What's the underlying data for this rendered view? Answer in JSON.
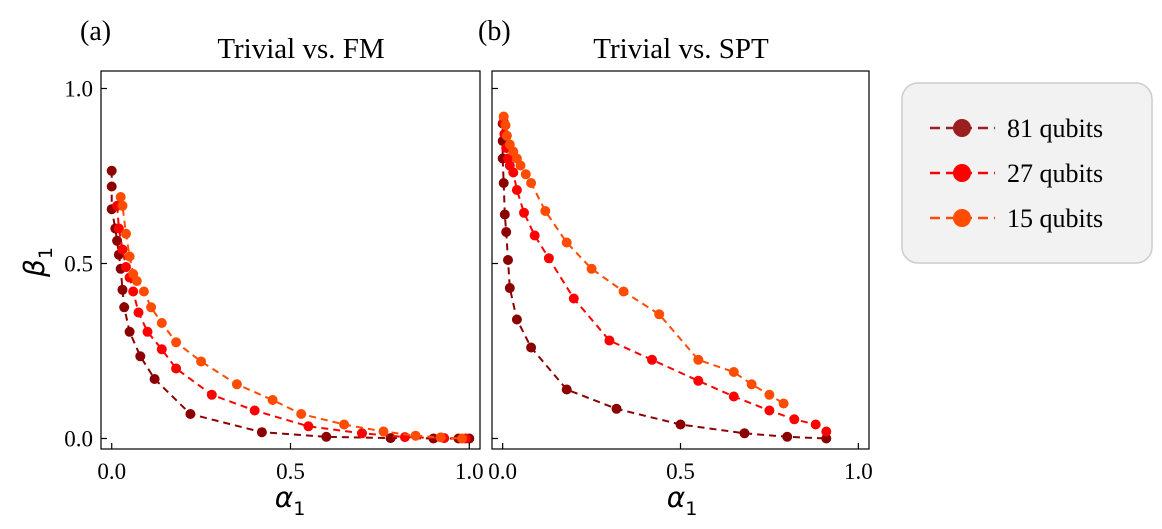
{
  "figure": {
    "y_axis_label": "β",
    "y_axis_label_sub": "1",
    "x_axis_label": "α",
    "x_axis_label_sub": "1"
  },
  "legend": [
    {
      "label": "81 qubits",
      "color": "#9a1f1f"
    },
    {
      "label": "27 qubits",
      "color": "#ff0000"
    },
    {
      "label": "15 qubits",
      "color": "#ff4c00"
    }
  ],
  "chart_data": [
    {
      "type": "line",
      "panel_label": "(a)",
      "title": "Trivial vs. FM",
      "xlabel": "α1",
      "ylabel": "β1",
      "xlim": [
        -0.03,
        1.03
      ],
      "ylim": [
        -0.03,
        1.05
      ],
      "xticks": [
        0.0,
        0.5,
        1.0
      ],
      "xtick_labels": [
        "0.0",
        "0.5",
        "1.0"
      ],
      "yticks": [
        0.0,
        0.5,
        1.0
      ],
      "ytick_labels": [
        "0.0",
        "0.5",
        "1.0"
      ],
      "series": [
        {
          "name": "81 qubits",
          "color": "#8b0000",
          "points": [
            [
              0.0,
              0.765
            ],
            [
              0.0,
              0.72
            ],
            [
              0.0,
              0.655
            ],
            [
              0.01,
              0.6
            ],
            [
              0.015,
              0.565
            ],
            [
              0.02,
              0.525
            ],
            [
              0.025,
              0.485
            ],
            [
              0.03,
              0.425
            ],
            [
              0.035,
              0.375
            ],
            [
              0.05,
              0.305
            ],
            [
              0.08,
              0.235
            ],
            [
              0.12,
              0.17
            ],
            [
              0.22,
              0.07
            ],
            [
              0.42,
              0.018
            ],
            [
              0.6,
              0.005
            ],
            [
              0.78,
              0.001
            ],
            [
              0.9,
              0.0
            ],
            [
              0.97,
              0.0
            ],
            [
              1.0,
              0.0
            ]
          ]
        },
        {
          "name": "27 qubits",
          "color": "#ff0000",
          "points": [
            [
              0.015,
              0.665
            ],
            [
              0.02,
              0.6
            ],
            [
              0.03,
              0.54
            ],
            [
              0.04,
              0.49
            ],
            [
              0.05,
              0.46
            ],
            [
              0.06,
              0.42
            ],
            [
              0.075,
              0.36
            ],
            [
              0.1,
              0.305
            ],
            [
              0.14,
              0.255
            ],
            [
              0.18,
              0.2
            ],
            [
              0.28,
              0.125
            ],
            [
              0.4,
              0.08
            ],
            [
              0.55,
              0.035
            ],
            [
              0.7,
              0.015
            ],
            [
              0.82,
              0.004
            ],
            [
              0.93,
              0.001
            ],
            [
              0.99,
              0.0
            ]
          ]
        },
        {
          "name": "15 qubits",
          "color": "#ff4c00",
          "points": [
            [
              0.025,
              0.69
            ],
            [
              0.03,
              0.665
            ],
            [
              0.04,
              0.585
            ],
            [
              0.05,
              0.52
            ],
            [
              0.06,
              0.47
            ],
            [
              0.07,
              0.45
            ],
            [
              0.09,
              0.42
            ],
            [
              0.11,
              0.375
            ],
            [
              0.14,
              0.33
            ],
            [
              0.18,
              0.275
            ],
            [
              0.25,
              0.22
            ],
            [
              0.35,
              0.155
            ],
            [
              0.45,
              0.11
            ],
            [
              0.53,
              0.07
            ],
            [
              0.65,
              0.04
            ],
            [
              0.76,
              0.02
            ],
            [
              0.85,
              0.008
            ],
            [
              0.92,
              0.003
            ],
            [
              0.98,
              0.0
            ]
          ]
        }
      ]
    },
    {
      "type": "line",
      "panel_label": "(b)",
      "title": "Trivial vs. SPT",
      "xlabel": "α1",
      "ylabel": "β1",
      "xlim": [
        -0.03,
        1.03
      ],
      "ylim": [
        -0.03,
        1.05
      ],
      "xticks": [
        0.0,
        0.5,
        1.0
      ],
      "xtick_labels": [
        "0.0",
        "0.5",
        "1.0"
      ],
      "yticks": [
        0.0,
        0.5,
        1.0
      ],
      "ytick_labels": [],
      "series": [
        {
          "name": "81 qubits",
          "color": "#8b0000",
          "points": [
            [
              0.0,
              0.9
            ],
            [
              0.0,
              0.85
            ],
            [
              0.0,
              0.8
            ],
            [
              0.003,
              0.73
            ],
            [
              0.006,
              0.64
            ],
            [
              0.01,
              0.59
            ],
            [
              0.015,
              0.51
            ],
            [
              0.02,
              0.43
            ],
            [
              0.04,
              0.34
            ],
            [
              0.08,
              0.26
            ],
            [
              0.18,
              0.14
            ],
            [
              0.32,
              0.085
            ],
            [
              0.5,
              0.04
            ],
            [
              0.68,
              0.015
            ],
            [
              0.8,
              0.005
            ],
            [
              0.91,
              0.0
            ]
          ]
        },
        {
          "name": "27 qubits",
          "color": "#ff0000",
          "points": [
            [
              0.003,
              0.905
            ],
            [
              0.005,
              0.87
            ],
            [
              0.01,
              0.83
            ],
            [
              0.015,
              0.8
            ],
            [
              0.02,
              0.78
            ],
            [
              0.03,
              0.76
            ],
            [
              0.04,
              0.71
            ],
            [
              0.06,
              0.645
            ],
            [
              0.09,
              0.58
            ],
            [
              0.13,
              0.515
            ],
            [
              0.2,
              0.4
            ],
            [
              0.3,
              0.28
            ],
            [
              0.42,
              0.225
            ],
            [
              0.55,
              0.165
            ],
            [
              0.65,
              0.12
            ],
            [
              0.75,
              0.08
            ],
            [
              0.82,
              0.055
            ],
            [
              0.88,
              0.04
            ],
            [
              0.91,
              0.02
            ]
          ]
        },
        {
          "name": "15 qubits",
          "color": "#ff4c00",
          "points": [
            [
              0.003,
              0.92
            ],
            [
              0.008,
              0.895
            ],
            [
              0.012,
              0.865
            ],
            [
              0.02,
              0.84
            ],
            [
              0.03,
              0.82
            ],
            [
              0.04,
              0.8
            ],
            [
              0.05,
              0.78
            ],
            [
              0.065,
              0.755
            ],
            [
              0.08,
              0.73
            ],
            [
              0.12,
              0.65
            ],
            [
              0.18,
              0.56
            ],
            [
              0.25,
              0.485
            ],
            [
              0.34,
              0.42
            ],
            [
              0.44,
              0.355
            ],
            [
              0.55,
              0.225
            ],
            [
              0.65,
              0.19
            ],
            [
              0.7,
              0.155
            ],
            [
              0.75,
              0.125
            ],
            [
              0.79,
              0.1
            ]
          ]
        }
      ]
    }
  ]
}
